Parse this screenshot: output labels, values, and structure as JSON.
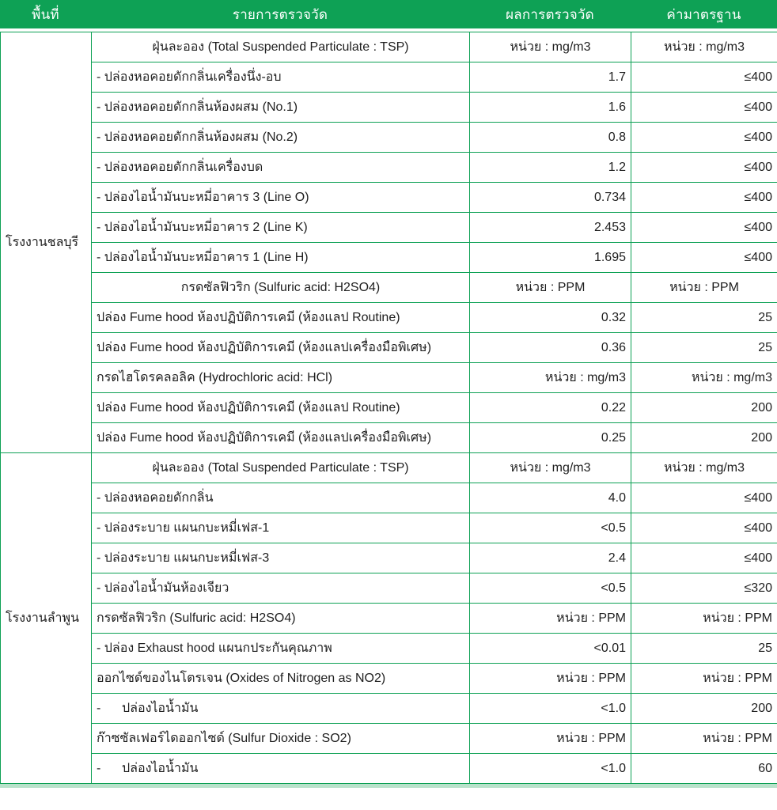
{
  "colors": {
    "green": "#0EA155",
    "light_green": "#b9e2cb",
    "dark_border": "#474747",
    "text": "#1e1e1e",
    "header_text": "#ffffff"
  },
  "header": {
    "columns": [
      "พื้นที่",
      "รายการตรวจวัด",
      "ผลการตรวจวัด",
      "ค่ามาตรฐาน"
    ]
  },
  "sections": [
    {
      "area": "โรงงานชลบุรี",
      "rows": [
        {
          "item": "ฝุ่นละออง (Total Suspended Particulate : TSP)",
          "item_align": "center",
          "result": "หน่วย : mg/m3",
          "standard": "หน่วย : mg/m3",
          "values_align": "center"
        },
        {
          "item": "- ปล่องหอคอยดักกลิ่นเครื่องนึ่ง-อบ",
          "item_align": "left",
          "result": "1.7",
          "standard": "≤400",
          "values_align": "right"
        },
        {
          "item": "- ปล่องหอคอยดักกลิ่นห้องผสม (No.1)",
          "item_align": "left",
          "result": "1.6",
          "standard": "≤400",
          "values_align": "right"
        },
        {
          "item": "- ปล่องหอคอยดักกลิ่นห้องผสม (No.2)",
          "item_align": "left",
          "result": "0.8",
          "standard": "≤400",
          "values_align": "right"
        },
        {
          "item": "- ปล่องหอคอยดักกลิ่นเครื่องบด",
          "item_align": "left",
          "result": "1.2",
          "standard": "≤400",
          "values_align": "right"
        },
        {
          "item": "- ปล่องไอน้ำมันบะหมี่อาคาร 3 (Line O)",
          "item_align": "left",
          "result": "0.734",
          "standard": "≤400",
          "values_align": "right"
        },
        {
          "item": "- ปล่องไอน้ำมันบะหมี่อาคาร 2 (Line K)",
          "item_align": "left",
          "result": "2.453",
          "standard": "≤400",
          "values_align": "right"
        },
        {
          "item": "- ปล่องไอน้ำมันบะหมี่อาคาร 1 (Line H)",
          "item_align": "left",
          "result": "1.695",
          "standard": "≤400",
          "values_align": "right"
        },
        {
          "item": "กรดซัลฟิวริก (Sulfuric acid: H2SO4)",
          "item_align": "center",
          "result": "หน่วย : PPM",
          "standard": "หน่วย : PPM",
          "values_align": "center"
        },
        {
          "item": "ปล่อง Fume hood ห้องปฏิบัติการเคมี (ห้องแลป Routine)",
          "item_align": "left",
          "result": "0.32",
          "standard": "25",
          "values_align": "right"
        },
        {
          "item": "ปล่อง Fume hood ห้องปฏิบัติการเคมี (ห้องแลปเครื่องมือพิเศษ)",
          "item_align": "left",
          "result": "0.36",
          "standard": "25",
          "values_align": "right"
        },
        {
          "item": "กรดไฮโดรคลอลิค (Hydrochloric acid: HCl)",
          "item_align": "left",
          "result": "หน่วย : mg/m3",
          "standard": "หน่วย : mg/m3",
          "values_align": "right"
        },
        {
          "item": "ปล่อง Fume hood ห้องปฏิบัติการเคมี (ห้องแลป Routine)",
          "item_align": "left",
          "result": "0.22",
          "standard": "200",
          "values_align": "right"
        },
        {
          "item": "ปล่อง Fume hood ห้องปฏิบัติการเคมี (ห้องแลปเครื่องมือพิเศษ)",
          "item_align": "left",
          "result": "0.25",
          "standard": "200",
          "values_align": "right"
        }
      ]
    },
    {
      "area": "โรงงานลำพูน",
      "rows": [
        {
          "item": "ฝุ่นละออง (Total Suspended Particulate : TSP)",
          "item_align": "center",
          "result": "หน่วย : mg/m3",
          "standard": "หน่วย : mg/m3",
          "values_align": "center"
        },
        {
          "item": "- ปล่องหอคอยดักกลิ่น",
          "item_align": "left",
          "result": "4.0",
          "standard": "≤400",
          "values_align": "right"
        },
        {
          "item": "- ปล่องระบาย แผนกบะหมี่เฟส-1",
          "item_align": "left",
          "result": "<0.5",
          "standard": "≤400",
          "values_align": "right"
        },
        {
          "item": "- ปล่องระบาย แผนกบะหมี่เฟส-3",
          "item_align": "left",
          "result": "2.4",
          "standard": "≤400",
          "values_align": "right"
        },
        {
          "item": "- ปล่องไอน้ำมันห้องเจียว",
          "item_align": "left",
          "result": "<0.5",
          "standard": "≤320",
          "values_align": "right"
        },
        {
          "item": "กรดซัลฟิวริก (Sulfuric acid: H2SO4)",
          "item_align": "left",
          "result": "หน่วย : PPM",
          "standard": "หน่วย : PPM",
          "values_align": "right"
        },
        {
          "item": "- ปล่อง Exhaust hood แผนกประกันคุณภาพ",
          "item_align": "left",
          "result": "<0.01",
          "standard": "25",
          "values_align": "right"
        },
        {
          "item": "ออกไซด์ของไนโตรเจน (Oxides of Nitrogen as NO2)",
          "item_align": "left",
          "result": "หน่วย : PPM",
          "standard": "หน่วย : PPM",
          "values_align": "right"
        },
        {
          "item": "-      ปล่องไอน้ำมัน",
          "item_align": "left",
          "result": "<1.0",
          "standard": "200",
          "values_align": "right"
        },
        {
          "item": "ก๊าซซัลเฟอร์ไดออกไซด์ (Sulfur Dioxide : SO2)",
          "item_align": "left",
          "result": "หน่วย : PPM",
          "standard": "หน่วย : PPM",
          "values_align": "right"
        },
        {
          "item": "-      ปล่องไอน้ำมัน",
          "item_align": "left",
          "result": "<1.0",
          "standard": "60",
          "values_align": "right"
        }
      ]
    }
  ]
}
